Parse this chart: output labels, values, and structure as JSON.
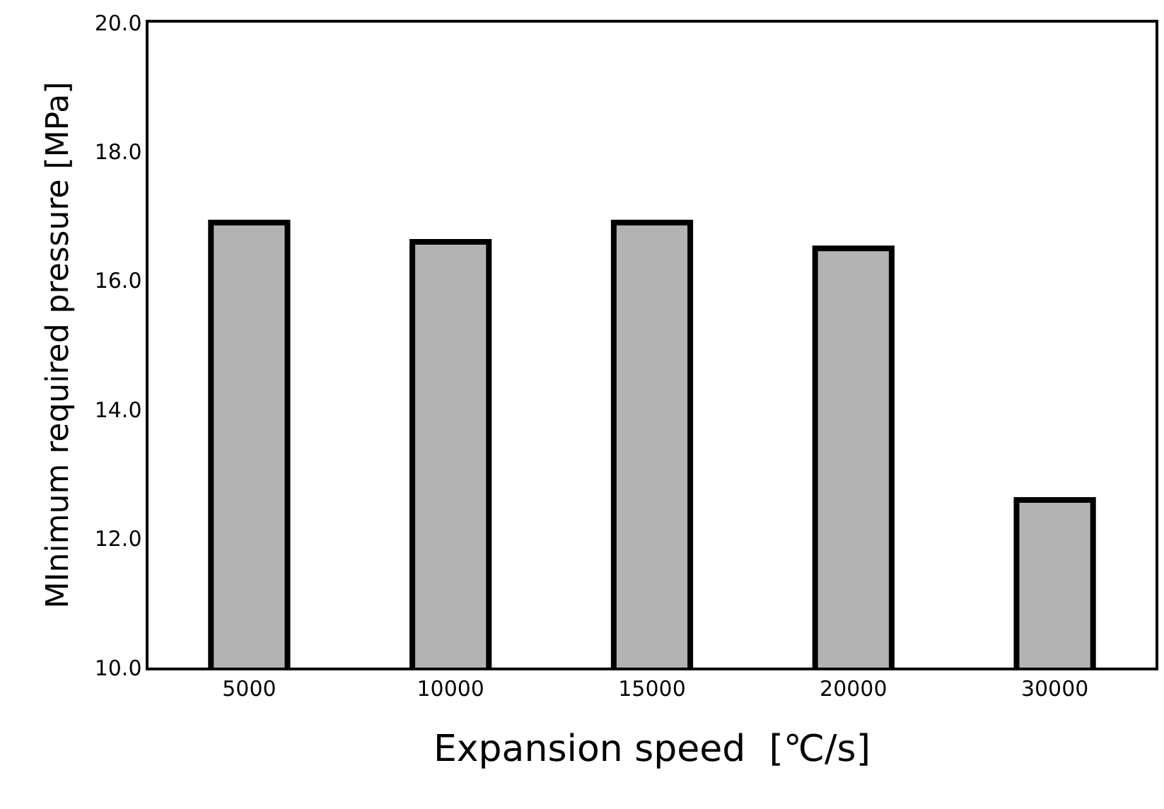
{
  "chart_data": {
    "type": "bar",
    "xlabel": "Expansion speed  [℃/s]",
    "ylabel": "MInimum required pressure [MPa]",
    "categories": [
      "5000",
      "10000",
      "15000",
      "20000",
      "30000"
    ],
    "values": [
      16.9,
      16.6,
      16.9,
      16.5,
      12.6
    ],
    "color": "#b3b3b3",
    "ylim": [
      10.0,
      20.0
    ],
    "yticks": [
      {
        "value": 10,
        "label": "10.0"
      },
      {
        "value": 12,
        "label": "12.0"
      },
      {
        "value": 14,
        "label": "14.0"
      },
      {
        "value": 16,
        "label": "16.0"
      },
      {
        "value": 18,
        "label": "18.0"
      },
      {
        "value": 20,
        "label": "20.0"
      }
    ],
    "legend": false
  }
}
